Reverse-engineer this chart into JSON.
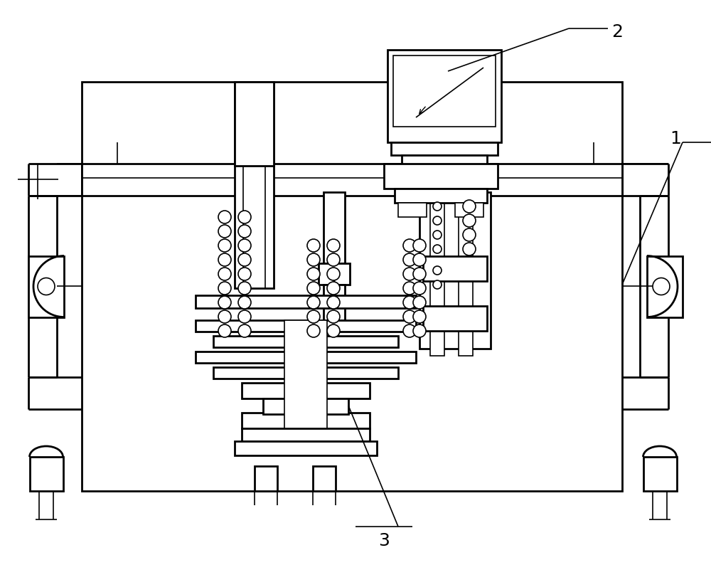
{
  "background_color": "#ffffff",
  "line_color": "#000000",
  "label_1": "1",
  "label_2": "2",
  "label_3": "3",
  "label_fontsize": 18,
  "fig_width": 10.0,
  "fig_height": 7.94,
  "dpi": 100
}
